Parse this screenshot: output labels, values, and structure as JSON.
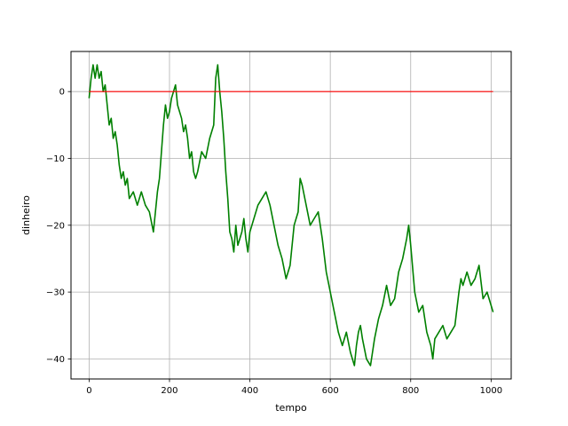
{
  "chart_data": {
    "type": "line",
    "title": "",
    "xlabel": "tempo",
    "ylabel": "dinheiro",
    "xlim": [
      -45,
      1050
    ],
    "ylim": [
      -43,
      6
    ],
    "xticks": [
      0,
      200,
      400,
      600,
      800,
      1000
    ],
    "yticks": [
      -40,
      -30,
      -20,
      -10,
      0
    ],
    "ytick_labels": [
      "−40",
      "−30",
      "−20",
      "−10",
      "0"
    ],
    "grid": true,
    "series": [
      {
        "color": "#008000",
        "x": [
          0,
          5,
          10,
          15,
          20,
          25,
          30,
          35,
          40,
          45,
          50,
          55,
          60,
          65,
          70,
          75,
          80,
          85,
          90,
          95,
          100,
          110,
          120,
          130,
          140,
          150,
          160,
          170,
          175,
          180,
          185,
          190,
          195,
          200,
          205,
          210,
          215,
          220,
          225,
          230,
          235,
          240,
          245,
          250,
          255,
          260,
          265,
          270,
          280,
          290,
          300,
          305,
          310,
          315,
          320,
          325,
          330,
          335,
          340,
          345,
          350,
          355,
          360,
          365,
          370,
          375,
          380,
          385,
          390,
          395,
          400,
          410,
          420,
          430,
          440,
          450,
          460,
          470,
          480,
          490,
          500,
          510,
          520,
          525,
          530,
          540,
          550,
          560,
          570,
          580,
          590,
          600,
          610,
          620,
          630,
          640,
          650,
          660,
          665,
          670,
          675,
          680,
          690,
          700,
          710,
          720,
          730,
          740,
          750,
          760,
          770,
          780,
          790,
          795,
          800,
          810,
          820,
          830,
          840,
          850,
          855,
          860,
          870,
          880,
          890,
          900,
          910,
          920,
          925,
          930,
          940,
          950,
          960,
          970,
          980,
          990,
          1000,
          1005
        ],
        "y": [
          -1,
          2,
          4,
          2,
          4,
          2,
          3,
          0,
          1,
          -2,
          -5,
          -4,
          -7,
          -6,
          -8,
          -11,
          -13,
          -12,
          -14,
          -13,
          -16,
          -15,
          -17,
          -15,
          -17,
          -18,
          -21,
          -15,
          -13,
          -9,
          -5,
          -2,
          -4,
          -3,
          -1,
          0,
          1,
          -2,
          -3,
          -4,
          -6,
          -5,
          -7,
          -10,
          -9,
          -12,
          -13,
          -12,
          -9,
          -10,
          -7,
          -6,
          -5,
          2,
          4,
          0,
          -3,
          -7,
          -12,
          -16,
          -21,
          -22,
          -24,
          -20,
          -23,
          -22,
          -21,
          -19,
          -22,
          -24,
          -21,
          -19,
          -17,
          -16,
          -15,
          -17,
          -20,
          -23,
          -25,
          -28,
          -26,
          -20,
          -18,
          -13,
          -14,
          -17,
          -20,
          -19,
          -18,
          -22,
          -27,
          -30,
          -33,
          -36,
          -38,
          -36,
          -39,
          -41,
          -38,
          -36,
          -35,
          -37,
          -40,
          -41,
          -37,
          -34,
          -32,
          -29,
          -32,
          -31,
          -27,
          -25,
          -22,
          -20,
          -23,
          -30,
          -33,
          -32,
          -36,
          -38,
          -40,
          -37,
          -36,
          -35,
          -37,
          -36,
          -35,
          -30,
          -28,
          -29,
          -27,
          -29,
          -28,
          -26,
          -31,
          -30,
          -32,
          -33
        ]
      },
      {
        "color": "#ff0000",
        "x": [
          0,
          1005
        ],
        "y": [
          0,
          0
        ]
      }
    ]
  }
}
